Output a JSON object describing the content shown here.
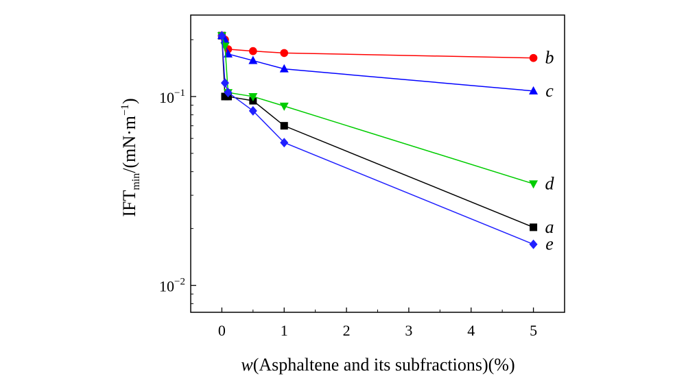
{
  "chart_data": {
    "type": "line",
    "yscale": "log",
    "xlabel_italic": "w",
    "xlabel_rest": "(Asphaltene and its subfractions)(%)",
    "ylabel_main": "IFT",
    "ylabel_sub": "min",
    "ylabel_unit": "/(mN·m",
    "ylabel_exp": "−1",
    "ylabel_close": ")",
    "xlim": [
      -0.5,
      5.5
    ],
    "ylim": [
      0.0072,
      0.27
    ],
    "xticks": [
      0,
      1,
      2,
      3,
      4,
      5
    ],
    "xtick_labels": [
      "0",
      "1",
      "2",
      "3",
      "4",
      "5"
    ],
    "yticks": [
      {
        "value": 0.1,
        "base": "10",
        "exp": "−1"
      },
      {
        "value": 0.01,
        "base": "10",
        "exp": "−2"
      }
    ],
    "series": [
      {
        "name": "a",
        "color": "#000000",
        "marker": "square",
        "x": [
          0,
          0.05,
          0.1,
          0.5,
          1,
          5
        ],
        "y": [
          0.21,
          0.1,
          0.1,
          0.095,
          0.07,
          0.0203
        ]
      },
      {
        "name": "b",
        "color": "#ff0000",
        "marker": "circle",
        "x": [
          0,
          0.05,
          0.1,
          0.5,
          1,
          5
        ],
        "y": [
          0.21,
          0.2,
          0.178,
          0.174,
          0.17,
          0.16
        ]
      },
      {
        "name": "c",
        "color": "#0000ff",
        "marker": "triangle-up",
        "x": [
          0,
          0.05,
          0.1,
          0.5,
          1,
          5
        ],
        "y": [
          0.21,
          0.2,
          0.168,
          0.155,
          0.14,
          0.107
        ]
      },
      {
        "name": "d",
        "color": "#00cc00",
        "marker": "triangle-down",
        "x": [
          0,
          0.05,
          0.1,
          0.5,
          1,
          5
        ],
        "y": [
          0.21,
          0.185,
          0.105,
          0.1,
          0.089,
          0.0345
        ]
      },
      {
        "name": "e",
        "color": "#2020ff",
        "marker": "diamond",
        "x": [
          0,
          0.05,
          0.1,
          0.5,
          1,
          5
        ],
        "y": [
          0.21,
          0.118,
          0.105,
          0.084,
          0.057,
          0.0165
        ]
      }
    ]
  }
}
